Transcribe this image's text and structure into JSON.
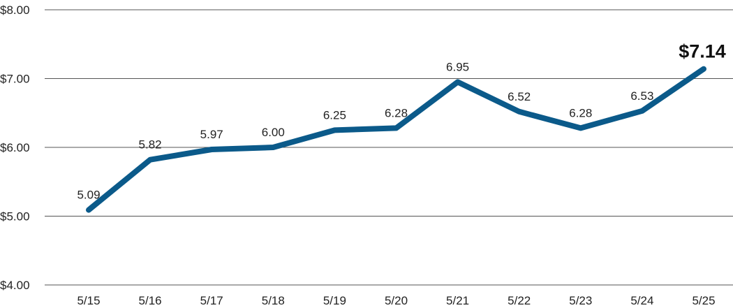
{
  "chart_data": {
    "type": "line",
    "categories": [
      "5/15",
      "5/16",
      "5/17",
      "5/18",
      "5/19",
      "5/20",
      "5/21",
      "5/22",
      "5/23",
      "5/24",
      "5/25"
    ],
    "series": [
      {
        "values": [
          5.09,
          5.82,
          5.97,
          6.0,
          6.25,
          6.28,
          6.95,
          6.52,
          6.28,
          6.53,
          7.14
        ],
        "data_labels": [
          "5.09",
          "5.82",
          "5.97",
          "6.00",
          "6.25",
          "6.28",
          "6.95",
          "6.52",
          "6.28",
          "6.53",
          "$7.14"
        ],
        "color": "#0b5a8a"
      }
    ],
    "ylim": [
      4,
      8
    ],
    "y_ticks": [
      8,
      7,
      6,
      5,
      4
    ],
    "y_tick_labels": [
      "$8.00",
      "$7.00",
      "$6.00",
      "$5.00",
      "$4.00"
    ],
    "grid": "horizontal",
    "title": "",
    "xlabel": "",
    "ylabel": ""
  },
  "colors": {
    "line": "#0b5a8a",
    "grid": "#555555",
    "text": "#222222"
  }
}
